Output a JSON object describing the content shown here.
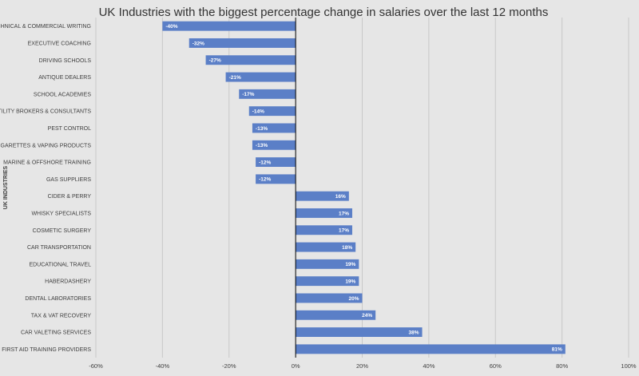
{
  "chart_data": {
    "type": "bar",
    "orientation": "horizontal",
    "title": "UK Industries with the biggest percentage change in salaries over the last 12 months",
    "ylabel": "UK INDUSTRIES",
    "xlabel": "",
    "xlim": [
      -60,
      100
    ],
    "xticks": [
      -60,
      -40,
      -20,
      0,
      20,
      40,
      60,
      80,
      100
    ],
    "xtick_labels": [
      "-60%",
      "-40%",
      "-20%",
      "0%",
      "20%",
      "40%",
      "60%",
      "80%",
      "100%"
    ],
    "grid": true,
    "bar_color": "#5b7fc7",
    "background_color": "#e6e6e6",
    "categories": [
      "TECHNICAL & COMMERCIAL WRITING",
      "EXECUTIVE COACHING",
      "DRIVING SCHOOLS",
      "ANTIQUE DEALERS",
      "SCHOOL ACADEMIES",
      "UTILITY BROKERS & CONSULTANTS",
      "PEST CONTROL",
      "E-CIGARETTES & VAPING PRODUCTS",
      "MARINE & OFFSHORE TRAINING",
      "GAS SUPPLIERS",
      "CIDER & PERRY",
      "WHISKY SPECIALISTS",
      "COSMETIC SURGERY",
      "CAR TRANSPORTATION",
      "EDUCATIONAL TRAVEL",
      "HABERDASHERY",
      "DENTAL LABORATORIES",
      "TAX & VAT RECOVERY",
      "CAR VALETING SERVICES",
      "FIRST AID TRAINING PROVIDERS"
    ],
    "values": [
      -40,
      -32,
      -27,
      -21,
      -17,
      -14,
      -13,
      -13,
      -12,
      -12,
      16,
      17,
      17,
      18,
      19,
      19,
      20,
      24,
      38,
      81
    ],
    "value_labels": [
      "-40%",
      "-32%",
      "-27%",
      "-21%",
      "-17%",
      "-14%",
      "-13%",
      "-13%",
      "-12%",
      "-12%",
      "16%",
      "17%",
      "17%",
      "18%",
      "19%",
      "19%",
      "20%",
      "24%",
      "38%",
      "81%"
    ]
  }
}
